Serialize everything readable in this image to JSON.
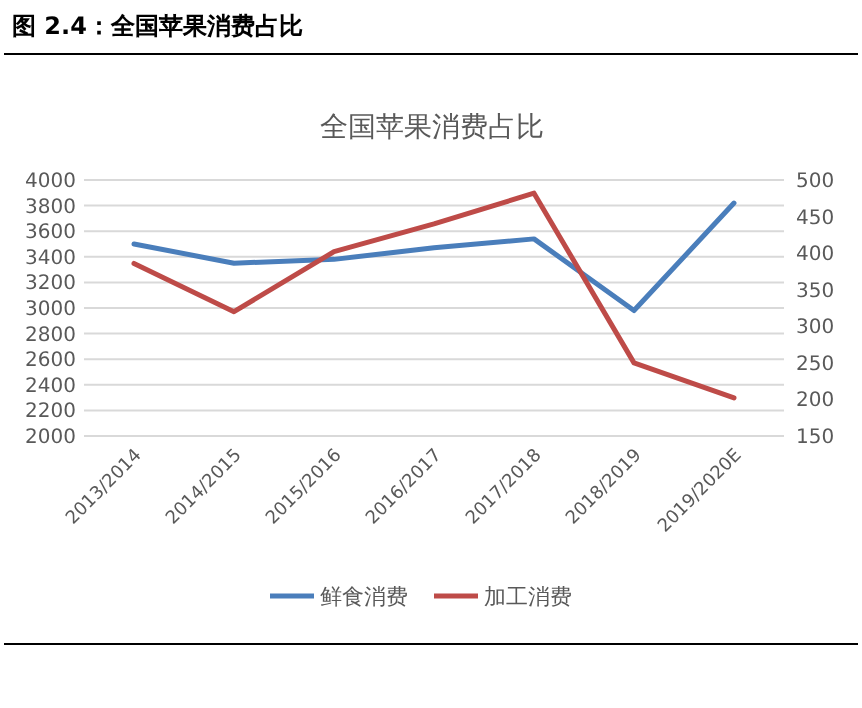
{
  "chart_data": {
    "type": "line",
    "title": "图 2.4：全国苹果消费占比",
    "subtitle": "全国苹果消费占比",
    "categories": [
      "2013/2014",
      "2014/2015",
      "2015/2016",
      "2016/2017",
      "2017/2018",
      "2018/2019",
      "2019/2020E"
    ],
    "series": [
      {
        "name": "鲜食消费",
        "color": "#4a7ebb",
        "values": [
          3500,
          3350,
          3380,
          3470,
          3540,
          2980,
          3820
        ]
      },
      {
        "name": "加工消费",
        "color": "#be4b48",
        "axis": "y2",
        "values": [
          386,
          320,
          402,
          440,
          482,
          250,
          202
        ]
      }
    ],
    "ylim": [
      2000,
      4000
    ],
    "yticks": [
      2000,
      2200,
      2400,
      2600,
      2800,
      3000,
      3200,
      3400,
      3600,
      3800,
      4000
    ],
    "y2lim": [
      150,
      500
    ],
    "y2ticks": [
      150,
      200,
      250,
      300,
      350,
      400,
      450,
      500
    ],
    "grid": "y",
    "legend": "bottom"
  }
}
